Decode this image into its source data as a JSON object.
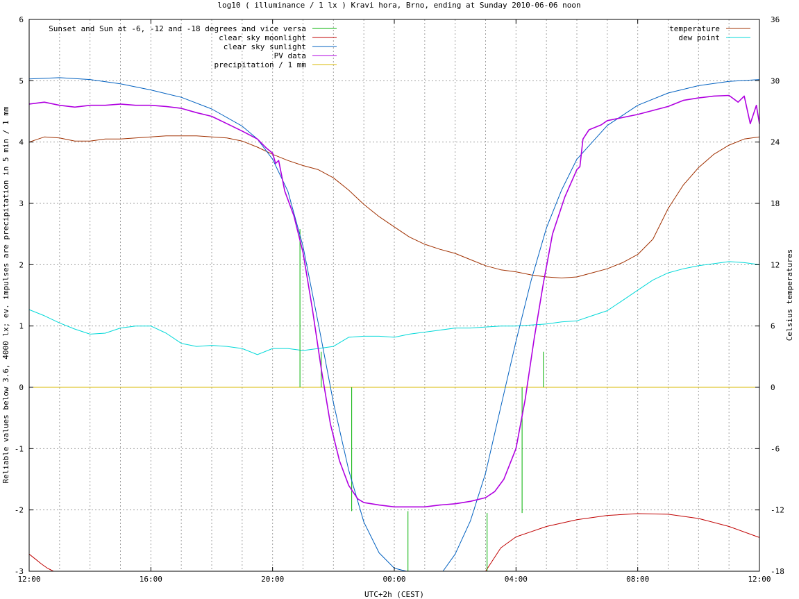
{
  "chart_data": {
    "type": "line",
    "title": "log10 ( illuminance / 1 lx ) Kravi hora, Brno, ending at Sunday 2010-06-06 noon",
    "xlabel": "UTC+2h (CEST)",
    "ylabel": "Reliable values below 3.6, 4000 lx; ev. impulses are precipitation in 5 min / 1 mm",
    "y2label": "Celsius temperatures",
    "x_unit": "hours since 12:00 (UTC+2h)",
    "xlim": [
      0,
      24
    ],
    "ylim": [
      -3,
      6
    ],
    "y2lim": [
      -18,
      36
    ],
    "x_ticks": [
      "12:00",
      "16:00",
      "20:00",
      "00:00",
      "04:00",
      "08:00",
      "12:00"
    ],
    "x_tick_hours": [
      0,
      4,
      8,
      12,
      16,
      20,
      24
    ],
    "y_ticks": [
      -3,
      -2,
      -1,
      0,
      1,
      2,
      3,
      4,
      5,
      6
    ],
    "y2_ticks": [
      -18,
      -12,
      -6,
      0,
      6,
      12,
      18,
      24,
      30,
      36
    ],
    "grid": true,
    "legend_left": {
      "placement": "top-left",
      "entries": [
        {
          "name": "Sunset and Sun at -6, -12 and -18 degrees and vice versa",
          "color": "#00b000"
        },
        {
          "name": "clear sky moonlight",
          "color": "#c00000"
        },
        {
          "name": "clear sky sunlight",
          "color": "#0060c0"
        },
        {
          "name": "PV data",
          "color": "#b000e0"
        },
        {
          "name": "precipitation / 1 mm",
          "color": "#d8b800"
        }
      ]
    },
    "legend_right": {
      "placement": "top-right",
      "entries": [
        {
          "name": "temperature",
          "color": "#a03000"
        },
        {
          "name": "dew point",
          "color": "#00d8d8"
        }
      ]
    },
    "series": [
      {
        "name": "Sunset and Sun at -6, -12 and -18 degrees and vice versa",
        "axis": "y",
        "kind": "impulses",
        "x": [
          8.9,
          9.6,
          10.6,
          12.45,
          13.2,
          15.05,
          16.2,
          16.9
        ],
        "values": [
          2.58,
          0.58,
          0,
          -2.02,
          -3,
          -3,
          -2.05,
          0.58
        ],
        "bases": [
          0,
          0,
          -2.02,
          -3,
          -3,
          -2.05,
          0,
          0
        ],
        "color": "#00b000"
      },
      {
        "name": "clear sky moonlight",
        "axis": "y",
        "x": [
          0,
          0.2,
          0.4,
          0.6,
          0.8,
          15.0,
          15.5,
          16.0,
          17.0,
          18.0,
          19.0,
          20.0,
          21.0,
          22.0,
          23.0,
          24.0
        ],
        "values": [
          -2.72,
          -2.8,
          -2.88,
          -2.95,
          -3.0,
          -3.0,
          -2.62,
          -2.44,
          -2.27,
          -2.16,
          -2.09,
          -2.06,
          -2.07,
          -2.14,
          -2.27,
          -2.45
        ],
        "color": "#c00000"
      },
      {
        "name": "clear sky sunlight",
        "axis": "y",
        "x": [
          0,
          1,
          2,
          3,
          4,
          5,
          6,
          7,
          7.5,
          8,
          8.5,
          9,
          9.5,
          10,
          10.5,
          11,
          11.5,
          12,
          12.4,
          13.6,
          14,
          14.5,
          15,
          15.5,
          16,
          16.5,
          17,
          17.5,
          18,
          19,
          20,
          21,
          22,
          23,
          24
        ],
        "values": [
          5.03,
          5.05,
          5.02,
          4.95,
          4.85,
          4.73,
          4.54,
          4.26,
          4.05,
          3.72,
          3.2,
          2.3,
          1.05,
          -0.25,
          -1.35,
          -2.2,
          -2.7,
          -2.95,
          -3.0,
          -3.0,
          -2.72,
          -2.18,
          -1.4,
          -0.32,
          0.75,
          1.75,
          2.6,
          3.22,
          3.72,
          4.27,
          4.6,
          4.8,
          4.92,
          4.99,
          5.02
        ],
        "color": "#0060c0"
      },
      {
        "name": "PV data",
        "axis": "y",
        "x": [
          0,
          0.5,
          1,
          1.5,
          2,
          2.5,
          3,
          3.5,
          4,
          4.5,
          5,
          5.5,
          6,
          6.5,
          7,
          7.5,
          7.8,
          8,
          8.1,
          8.2,
          8.4,
          8.7,
          9,
          9.3,
          9.6,
          9.9,
          10.2,
          10.5,
          10.8,
          11,
          11.5,
          12,
          12.5,
          13,
          13.5,
          14,
          14.5,
          15,
          15.3,
          15.6,
          16,
          16.3,
          16.6,
          16.9,
          17.2,
          17.6,
          18,
          18.1,
          18.2,
          18.4,
          18.8,
          19,
          20,
          21,
          21.5,
          22,
          22.5,
          23,
          23.3,
          23.5,
          23.7,
          23.9,
          24
        ],
        "values": [
          4.62,
          4.65,
          4.6,
          4.57,
          4.6,
          4.6,
          4.62,
          4.6,
          4.6,
          4.58,
          4.55,
          4.48,
          4.42,
          4.3,
          4.18,
          4.05,
          3.9,
          3.82,
          3.65,
          3.7,
          3.2,
          2.8,
          2.2,
          1.3,
          0.3,
          -0.6,
          -1.2,
          -1.6,
          -1.82,
          -1.88,
          -1.92,
          -1.95,
          -1.95,
          -1.95,
          -1.92,
          -1.9,
          -1.86,
          -1.8,
          -1.7,
          -1.5,
          -1.0,
          -0.2,
          0.8,
          1.7,
          2.5,
          3.1,
          3.55,
          3.6,
          4.05,
          4.2,
          4.28,
          4.35,
          4.45,
          4.58,
          4.68,
          4.72,
          4.75,
          4.76,
          4.65,
          4.75,
          4.3,
          4.6,
          4.3
        ],
        "color": "#b000e0"
      },
      {
        "name": "precipitation / 1 mm",
        "axis": "y",
        "x": [
          0,
          24
        ],
        "values": [
          0,
          0
        ],
        "color": "#d8b800"
      },
      {
        "name": "temperature",
        "axis": "y2",
        "x": [
          0,
          0.5,
          1,
          1.5,
          2,
          2.5,
          3,
          3.5,
          4,
          4.5,
          5,
          5.5,
          6,
          6.5,
          7,
          7.5,
          8,
          8.5,
          9,
          9.5,
          10,
          10.5,
          11,
          11.5,
          12,
          12.5,
          13,
          13.5,
          14,
          14.5,
          15,
          15.5,
          16,
          16.5,
          17,
          17.5,
          18,
          18.5,
          19,
          19.5,
          20,
          20.5,
          21,
          21.5,
          22,
          22.5,
          23,
          23.5,
          24
        ],
        "values": [
          24,
          24.5,
          24.4,
          24.1,
          24.1,
          24.3,
          24.3,
          24.4,
          24.5,
          24.6,
          24.6,
          24.6,
          24.5,
          24.4,
          24.1,
          23.5,
          22.8,
          22.2,
          21.7,
          21.3,
          20.5,
          19.3,
          17.9,
          16.7,
          15.7,
          14.7,
          14.0,
          13.5,
          13.1,
          12.5,
          11.9,
          11.5,
          11.3,
          11.0,
          10.8,
          10.7,
          10.8,
          11.2,
          11.6,
          12.2,
          13.0,
          14.5,
          17.5,
          19.8,
          21.5,
          22.8,
          23.7,
          24.3,
          24.5
        ],
        "color": "#a03000"
      },
      {
        "name": "dew point",
        "axis": "y2",
        "x": [
          0,
          0.5,
          1,
          1.5,
          2,
          2.5,
          3,
          3.5,
          4,
          4.5,
          5,
          5.5,
          6,
          6.5,
          7,
          7.5,
          8,
          8.5,
          9,
          9.5,
          10,
          10.5,
          11,
          11.5,
          12,
          12.5,
          13,
          13.5,
          14,
          14.5,
          15,
          15.5,
          16,
          16.5,
          17,
          17.5,
          18,
          18.5,
          19,
          19.5,
          20,
          20.5,
          21,
          21.5,
          22,
          22.5,
          23,
          23.5,
          24
        ],
        "values": [
          7.6,
          7.0,
          6.3,
          5.7,
          5.2,
          5.3,
          5.8,
          6.0,
          6.0,
          5.3,
          4.3,
          4.0,
          4.1,
          4.0,
          3.8,
          3.2,
          3.8,
          3.8,
          3.6,
          3.8,
          4.0,
          4.9,
          5.0,
          5.0,
          4.9,
          5.2,
          5.4,
          5.6,
          5.8,
          5.8,
          5.9,
          6.0,
          6.0,
          6.1,
          6.2,
          6.4,
          6.5,
          7.0,
          7.5,
          8.5,
          9.5,
          10.5,
          11.2,
          11.6,
          11.9,
          12.1,
          12.3,
          12.2,
          12.0
        ],
        "color": "#00d8d8"
      }
    ]
  }
}
